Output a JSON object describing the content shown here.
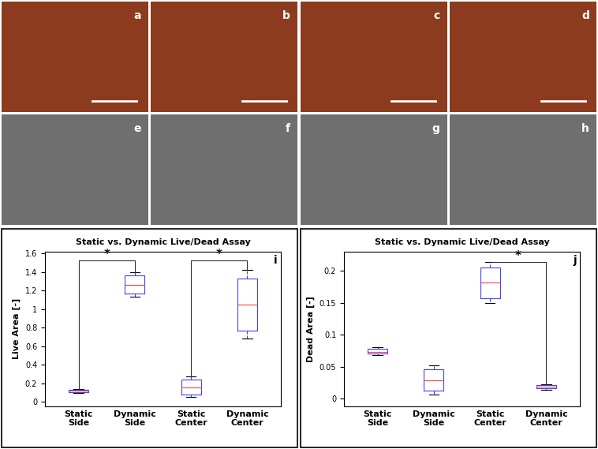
{
  "image_panels": {
    "labels": [
      "a",
      "b",
      "c",
      "d",
      "e",
      "f",
      "g",
      "h"
    ]
  },
  "chart_data": [
    {
      "type": "box",
      "title": "Static vs. Dynamic Live/Dead Assay",
      "panel_label": "i",
      "ylabel": "Live Area [-]",
      "categories": [
        "Static\nSide",
        "Dynamic\nSide",
        "Static\nCenter",
        "Dynamic\nCenter"
      ],
      "boxes": [
        {
          "whislo": 0.09,
          "q1": 0.1,
          "med": 0.12,
          "q3": 0.13,
          "whishi": 0.14
        },
        {
          "whislo": 1.13,
          "q1": 1.17,
          "med": 1.26,
          "q3": 1.36,
          "whishi": 1.4
        },
        {
          "whislo": 0.05,
          "q1": 0.08,
          "med": 0.15,
          "q3": 0.24,
          "whishi": 0.27
        },
        {
          "whislo": 0.68,
          "q1": 0.77,
          "med": 1.05,
          "q3": 1.33,
          "whishi": 1.42
        }
      ],
      "color": "#4040ff",
      "median_color": "#ff4040",
      "ylim": [
        -0.05,
        1.62
      ],
      "yticks": [
        0,
        0.2,
        0.4,
        0.6,
        0.8,
        1,
        1.2,
        1.4,
        1.6
      ],
      "significance": [
        {
          "from": "Static\nSide",
          "to": "Dynamic\nSide",
          "y": 1.52,
          "label": "*"
        },
        {
          "from": "Static\nCenter",
          "to": "Dynamic\nCenter",
          "y": 1.52,
          "label": "*"
        }
      ]
    },
    {
      "type": "box",
      "title": "Static vs. Dynamic Live/Dead Assay",
      "panel_label": "j",
      "ylabel": "Dead Area [-]",
      "categories": [
        "Static\nSide",
        "Dynamic\nSide",
        "Static\nCenter",
        "Dynamic\nCenter"
      ],
      "boxes": [
        {
          "whislo": 0.068,
          "q1": 0.07,
          "med": 0.073,
          "q3": 0.078,
          "whishi": 0.08
        },
        {
          "whislo": 0.007,
          "q1": 0.013,
          "med": 0.029,
          "q3": 0.046,
          "whishi": 0.052
        },
        {
          "whislo": 0.15,
          "q1": 0.157,
          "med": 0.181,
          "q3": 0.205,
          "whishi": 0.213
        },
        {
          "whislo": 0.014,
          "q1": 0.016,
          "med": 0.019,
          "q3": 0.021,
          "whishi": 0.023
        }
      ],
      "color": "#4040ff",
      "median_color": "#ff4040",
      "ylim": [
        -0.012,
        0.23
      ],
      "yticks": [
        0,
        0.05,
        0.1,
        0.15,
        0.2
      ],
      "significance": [
        {
          "from": "Static\nCenter",
          "to": "Dynamic\nCenter",
          "y": 0.213,
          "label": "*"
        }
      ]
    }
  ]
}
